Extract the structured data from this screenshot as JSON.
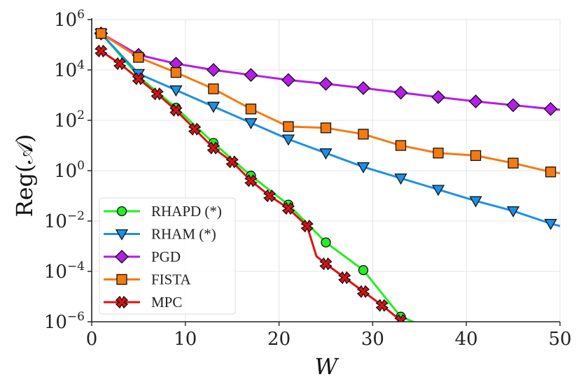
{
  "chart_data": {
    "type": "line",
    "title": "",
    "xlabel": "W",
    "ylabel": "Reg(𝒜)",
    "yscale": "log",
    "xlim": [
      0,
      50
    ],
    "ylim_exp": [
      -6,
      6
    ],
    "grid": true,
    "legend_position": "lower-left",
    "x_ticks": [
      0,
      10,
      20,
      30,
      40,
      50
    ],
    "x_tick_labels": [
      "0",
      "10",
      "20",
      "30",
      "40",
      "50"
    ],
    "y_ticks": [
      {
        "base": "10",
        "exp": "6"
      },
      {
        "base": "10",
        "exp": "4"
      },
      {
        "base": "10",
        "exp": "2"
      },
      {
        "base": "10",
        "exp": "0"
      },
      {
        "base": "10",
        "exp": "−2"
      },
      {
        "base": "10",
        "exp": "−4"
      },
      {
        "base": "10",
        "exp": "−6"
      }
    ],
    "series": [
      {
        "name": "RHAPD (*)",
        "color": "#22ee22",
        "marker": "circle",
        "x": [
          1,
          5,
          9,
          13,
          17,
          21,
          25,
          29,
          33,
          35
        ],
        "log10_y": [
          5.45,
          3.75,
          2.5,
          1.1,
          -0.2,
          -1.35,
          -2.85,
          -3.95,
          -5.8,
          -6.1
        ],
        "marker_x": [
          1,
          5,
          9,
          13,
          17,
          21,
          25,
          29,
          33
        ]
      },
      {
        "name": "RHAM (*)",
        "color": "#1c90e8",
        "marker": "triangle-down",
        "x": [
          1,
          5,
          9,
          13,
          17,
          21,
          25,
          29,
          33,
          37,
          41,
          45,
          49,
          50
        ],
        "log10_y": [
          5.45,
          3.85,
          3.2,
          2.55,
          1.9,
          1.25,
          0.7,
          0.15,
          -0.3,
          -0.75,
          -1.2,
          -1.6,
          -2.1,
          -2.2
        ],
        "marker_x": [
          1,
          5,
          9,
          13,
          17,
          21,
          25,
          29,
          33,
          37,
          41,
          45,
          49
        ]
      },
      {
        "name": "PGD",
        "color": "#b41ee6",
        "marker": "diamond",
        "x": [
          1,
          5,
          9,
          13,
          17,
          21,
          25,
          29,
          33,
          37,
          41,
          45,
          49,
          50
        ],
        "log10_y": [
          5.45,
          4.6,
          4.25,
          4.0,
          3.8,
          3.6,
          3.45,
          3.28,
          3.1,
          2.92,
          2.75,
          2.6,
          2.45,
          2.42
        ],
        "marker_x": [
          1,
          5,
          9,
          13,
          17,
          21,
          25,
          29,
          33,
          37,
          41,
          45,
          49
        ]
      },
      {
        "name": "FISTA",
        "color": "#f57a10",
        "marker": "square",
        "x": [
          1,
          5,
          9,
          13,
          17,
          21,
          25,
          29,
          33,
          37,
          41,
          45,
          49,
          50
        ],
        "log10_y": [
          5.45,
          4.5,
          3.9,
          3.25,
          2.45,
          1.75,
          1.7,
          1.45,
          1.0,
          0.7,
          0.6,
          0.3,
          -0.05,
          -0.1
        ],
        "marker_x": [
          1,
          5,
          9,
          13,
          17,
          21,
          25,
          29,
          33,
          37,
          41,
          45,
          49
        ]
      },
      {
        "name": "MPC",
        "color": "#e01010",
        "marker": "x",
        "x": [
          1,
          3,
          5,
          7,
          9,
          11,
          13,
          15,
          17,
          19,
          21,
          23,
          24,
          25,
          27,
          29,
          31,
          33
        ],
        "log10_y": [
          4.75,
          4.25,
          3.65,
          3.05,
          2.4,
          1.65,
          0.9,
          0.35,
          -0.4,
          -1.0,
          -1.5,
          -2.2,
          -3.4,
          -3.7,
          -4.25,
          -4.8,
          -5.35,
          -5.95
        ],
        "marker_x": [
          1,
          3,
          5,
          7,
          9,
          11,
          13,
          15,
          17,
          19,
          21,
          23,
          25,
          27,
          29,
          31,
          33
        ]
      }
    ]
  }
}
